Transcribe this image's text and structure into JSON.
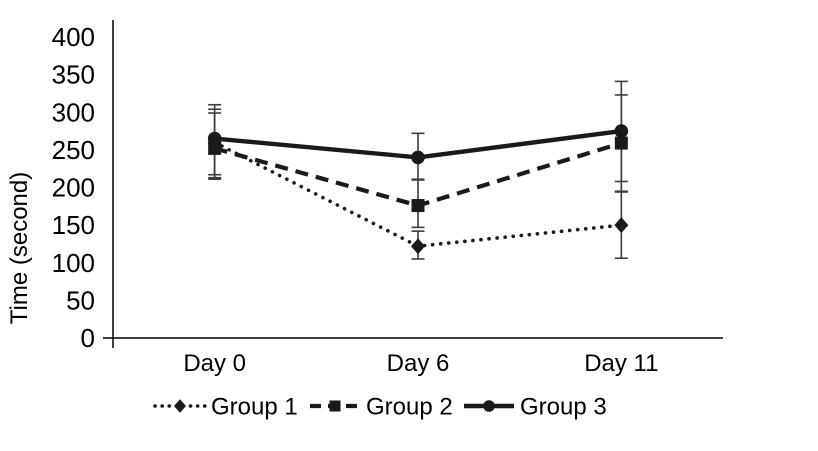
{
  "figure": {
    "background": "#ffffff",
    "ink_color": "#1a1a1a",
    "axis_color": "#000000",
    "error_bar_color": "#3d3d3d"
  },
  "chart_data": {
    "type": "line",
    "title": "",
    "xlabel": "",
    "ylabel": "Time (second)",
    "categories": [
      "Day 0",
      "Day 6",
      "Day 11"
    ],
    "ylim": [
      0,
      400
    ],
    "ytick_step": 50,
    "yticks": [
      0,
      50,
      100,
      150,
      200,
      250,
      300,
      350,
      400
    ],
    "grid": false,
    "legend_position": "bottom",
    "error_bars": true,
    "series": [
      {
        "name": "Group 1",
        "marker": "diamond",
        "line_style": "dotted",
        "color": "#1a1a1a",
        "values": [
          260,
          122,
          150
        ],
        "error_low": [
          213,
          105,
          106
        ],
        "error_high": [
          304,
          142,
          195
        ]
      },
      {
        "name": "Group 2",
        "marker": "square",
        "line_style": "dashed",
        "color": "#1a1a1a",
        "values": [
          252,
          176,
          259
        ],
        "error_low": [
          211,
          147,
          194
        ],
        "error_high": [
          299,
          210,
          323
        ]
      },
      {
        "name": "Group 3",
        "marker": "circle",
        "line_style": "solid",
        "color": "#1a1a1a",
        "values": [
          265,
          240,
          275
        ],
        "error_low": [
          217,
          211,
          208
        ],
        "error_high": [
          310,
          272,
          341
        ]
      }
    ]
  }
}
